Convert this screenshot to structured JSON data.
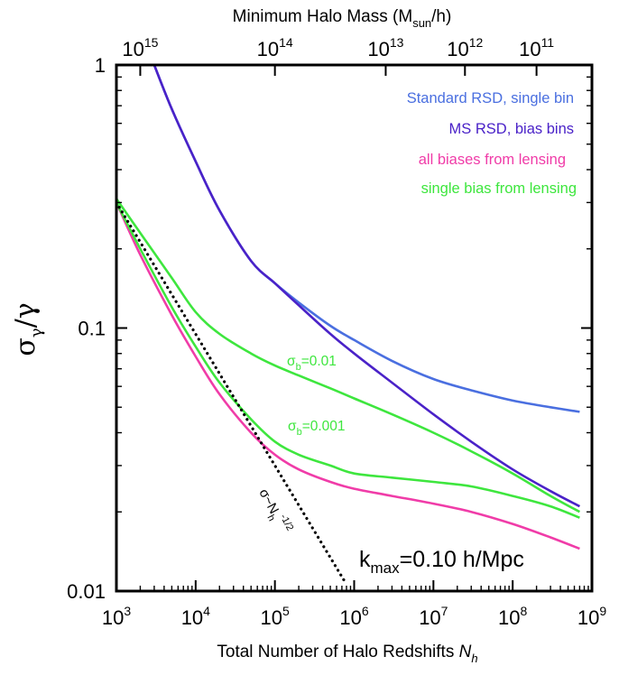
{
  "chart_data": {
    "type": "line",
    "xscale": "log",
    "yscale": "log",
    "xlim": [
      1000,
      1000000000
    ],
    "ylim": [
      0.01,
      1
    ],
    "xlabel_main": "Total Number of Halo Redshifts ",
    "xlabel_italic": "N",
    "xlabel_sub": "h",
    "ylabel": {
      "sigma": "σ",
      "gamma_sub": "γ",
      "slash": "/γ"
    },
    "top_axis": {
      "label_pre": "Minimum Halo Mass (M",
      "label_sub": "sun",
      "label_post": "/h)",
      "ticks": [
        {
          "exp": "15",
          "at_x": 2000
        },
        {
          "exp": "14",
          "at_x": 100000
        },
        {
          "exp": "13",
          "at_x": 2500000
        },
        {
          "exp": "12",
          "at_x": 25000000
        },
        {
          "exp": "11",
          "at_x": 200000000
        }
      ]
    },
    "x_ticks": [
      {
        "base": "10",
        "exp": "3",
        "v": 1000
      },
      {
        "base": "10",
        "exp": "4",
        "v": 10000
      },
      {
        "base": "10",
        "exp": "5",
        "v": 100000
      },
      {
        "base": "10",
        "exp": "6",
        "v": 1000000
      },
      {
        "base": "10",
        "exp": "7",
        "v": 10000000
      },
      {
        "base": "10",
        "exp": "8",
        "v": 100000000
      },
      {
        "base": "10",
        "exp": "9",
        "v": 1000000000
      }
    ],
    "y_ticks": [
      {
        "label": "1",
        "v": 1
      },
      {
        "label": "0.1",
        "v": 0.1
      },
      {
        "label": "0.01",
        "v": 0.01
      }
    ],
    "series": [
      {
        "name": "Standard RSD, single bin",
        "color": "#4a6fe0",
        "x": [
          3000,
          5000,
          10000,
          20000,
          50000,
          100000,
          200000,
          500000,
          1000000,
          3000000,
          10000000,
          30000000,
          100000000,
          300000000,
          700000000
        ],
        "y": [
          1.0,
          0.68,
          0.43,
          0.28,
          0.18,
          0.148,
          0.125,
          0.102,
          0.09,
          0.075,
          0.064,
          0.058,
          0.053,
          0.05,
          0.048
        ]
      },
      {
        "name": "MS RSD, bias bins",
        "color": "#4a22c8",
        "x": [
          3000,
          5000,
          10000,
          20000,
          50000,
          100000,
          200000,
          500000,
          1000000,
          3000000,
          10000000,
          30000000,
          100000000,
          300000000,
          700000000
        ],
        "y": [
          1.0,
          0.68,
          0.43,
          0.28,
          0.18,
          0.148,
          0.122,
          0.095,
          0.08,
          0.062,
          0.047,
          0.037,
          0.029,
          0.024,
          0.021
        ]
      },
      {
        "name": "all biases from lensing",
        "color": "#f03ca8",
        "x": [
          1000,
          2000,
          5000,
          10000,
          20000,
          50000,
          100000,
          200000,
          500000,
          1000000,
          3000000,
          10000000,
          30000000,
          100000000,
          300000000,
          700000000
        ],
        "y": [
          0.3,
          0.19,
          0.112,
          0.078,
          0.056,
          0.04,
          0.033,
          0.029,
          0.026,
          0.0245,
          0.023,
          0.0215,
          0.02,
          0.018,
          0.016,
          0.0145
        ]
      },
      {
        "name": "single bias from lensing (σb=0.01)",
        "color": "#3ee63e",
        "x": [
          1000,
          2000,
          5000,
          10000,
          20000,
          50000,
          100000,
          200000,
          500000,
          1000000,
          3000000,
          10000000,
          30000000,
          100000000,
          300000000,
          700000000
        ],
        "y": [
          0.31,
          0.23,
          0.155,
          0.115,
          0.095,
          0.08,
          0.072,
          0.066,
          0.059,
          0.054,
          0.047,
          0.04,
          0.034,
          0.028,
          0.023,
          0.02
        ]
      },
      {
        "name": "single bias from lensing (σb=0.001)",
        "color": "#3ee63e",
        "x": [
          1000,
          2000,
          5000,
          10000,
          20000,
          50000,
          100000,
          200000,
          500000,
          1000000,
          3000000,
          10000000,
          30000000,
          100000000,
          300000000,
          700000000
        ],
        "y": [
          0.3,
          0.2,
          0.12,
          0.085,
          0.062,
          0.045,
          0.037,
          0.033,
          0.03,
          0.028,
          0.027,
          0.026,
          0.025,
          0.023,
          0.021,
          0.019
        ]
      },
      {
        "name": "σ~N_h^-1/2",
        "color": "#000000",
        "dash": true,
        "x": [
          1000,
          800000
        ],
        "y": [
          0.3,
          0.0106
        ]
      }
    ],
    "legend": [
      {
        "text": "Standard RSD, single bin",
        "color": "#4a6fe0"
      },
      {
        "text": "MS RSD, bias bins",
        "color": "#4a22c8"
      },
      {
        "text": "all biases from lensing",
        "color": "#f03ca8"
      },
      {
        "text": "single bias from lensing",
        "color": "#3ee63e"
      }
    ],
    "annotations": {
      "sb1": {
        "pre": "σ",
        "sub": "b",
        "post": "=0.01"
      },
      "sb2": {
        "pre": "σ",
        "sub": "b",
        "post": "=0.001"
      },
      "scaling": {
        "pre": "σ~N",
        "sub": "h",
        "sup": "-1/2"
      },
      "kmax": {
        "pre": "k",
        "sub": "max",
        "post": "=0.10 h/Mpc"
      }
    }
  }
}
